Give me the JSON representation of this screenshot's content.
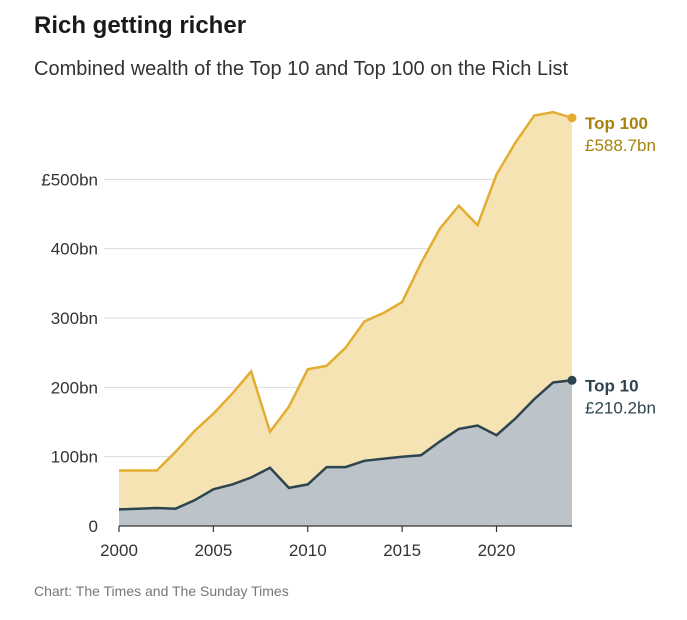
{
  "header": {
    "title": "Rich getting richer",
    "subtitle": "Combined wealth of the Top 10 and Top 100 on the Rich List"
  },
  "footer": {
    "source": "Chart: The Times and The Sunday Times"
  },
  "colors": {
    "top100_line": "#e2ad30",
    "top100_fill": "#f5e3b3",
    "top10_line": "#2e4550",
    "top10_fill": "#bcc4ca",
    "top100_label": "#a8820e",
    "top10_label": "#2e4550"
  },
  "chart_data": {
    "type": "area",
    "title": "Rich getting richer",
    "subtitle": "Combined wealth of the Top 10 and Top 100 on the Rich List",
    "xlabel": "",
    "ylabel": "",
    "x": [
      2000,
      2001,
      2002,
      2003,
      2004,
      2005,
      2006,
      2007,
      2008,
      2009,
      2010,
      2011,
      2012,
      2013,
      2014,
      2015,
      2016,
      2017,
      2018,
      2019,
      2020,
      2021,
      2022,
      2023,
      2024
    ],
    "series": [
      {
        "name": "Top 100",
        "values": [
          80,
          80,
          80,
          107,
          137,
          162,
          191,
          223,
          136,
          172,
          226,
          231,
          257,
          295,
          307,
          323,
          379,
          429,
          462,
          434,
          507,
          553,
          592,
          597,
          588.7
        ],
        "end_label": "£588.7bn"
      },
      {
        "name": "Top 10",
        "values": [
          24,
          25,
          26,
          25,
          37,
          53,
          60,
          70,
          84,
          55,
          60,
          85,
          85,
          94,
          97,
          100,
          102,
          122,
          140,
          145,
          131,
          155,
          183,
          207,
          210.2
        ],
        "end_label": "£210.2bn"
      }
    ],
    "xlim": [
      2000,
      2024
    ],
    "ylim": [
      0,
      600
    ],
    "x_ticks": [
      "2000",
      "2005",
      "2010",
      "2015",
      "2020"
    ],
    "x_tick_values": [
      2000,
      2005,
      2010,
      2015,
      2020
    ],
    "y_ticks": [
      "0",
      "100bn",
      "200bn",
      "300bn",
      "400bn",
      "£500bn"
    ],
    "y_tick_values": [
      0,
      100,
      200,
      300,
      400,
      500
    ],
    "grid": true,
    "legend": "none (direct end labels)"
  }
}
